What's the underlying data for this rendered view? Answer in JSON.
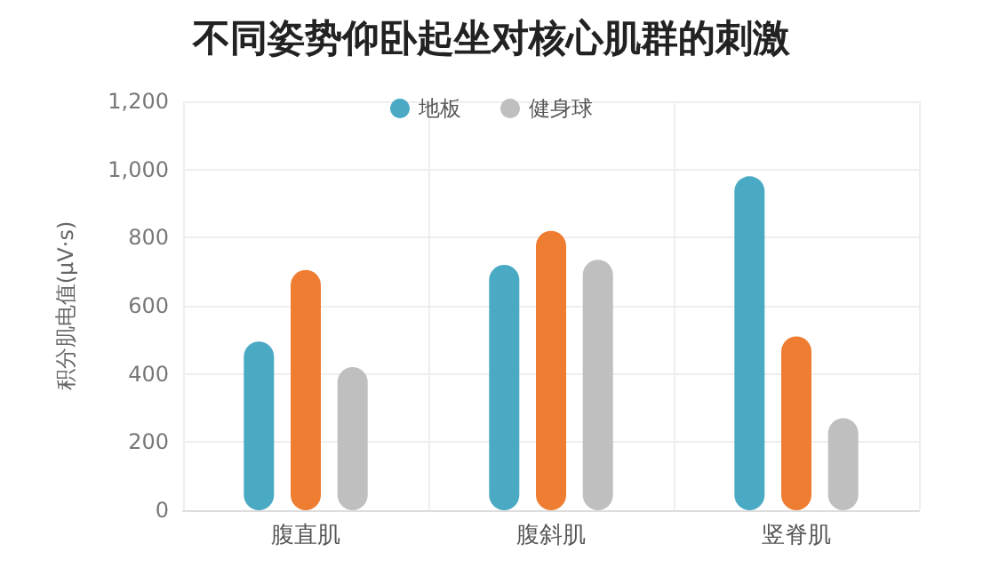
{
  "chart_data": {
    "type": "bar",
    "title": "不同姿势仰卧起坐对核心肌群的刺激",
    "ylabel": "积分肌电值(μV·s)",
    "categories": [
      "腹直肌",
      "腹斜肌",
      "竖脊肌"
    ],
    "series": [
      {
        "name": "地板",
        "color": "#4aaac4",
        "values": [
          495,
          720,
          980
        ]
      },
      {
        "color": "#ee7d31",
        "values": [
          705,
          820,
          510
        ]
      },
      {
        "name": "健身球",
        "color": "#bfbfbf",
        "values": [
          420,
          735,
          270
        ]
      }
    ],
    "ylim": [
      0,
      1200
    ],
    "yticks": [
      {
        "value": 0,
        "label": "0"
      },
      {
        "value": 200,
        "label": "200"
      },
      {
        "value": 400,
        "label": "400"
      },
      {
        "value": 600,
        "label": "600"
      },
      {
        "value": 800,
        "label": "800"
      },
      {
        "value": 1000,
        "label": "1,000"
      },
      {
        "value": 1200,
        "label": "1,200"
      }
    ],
    "grid": true,
    "legend": "top"
  }
}
